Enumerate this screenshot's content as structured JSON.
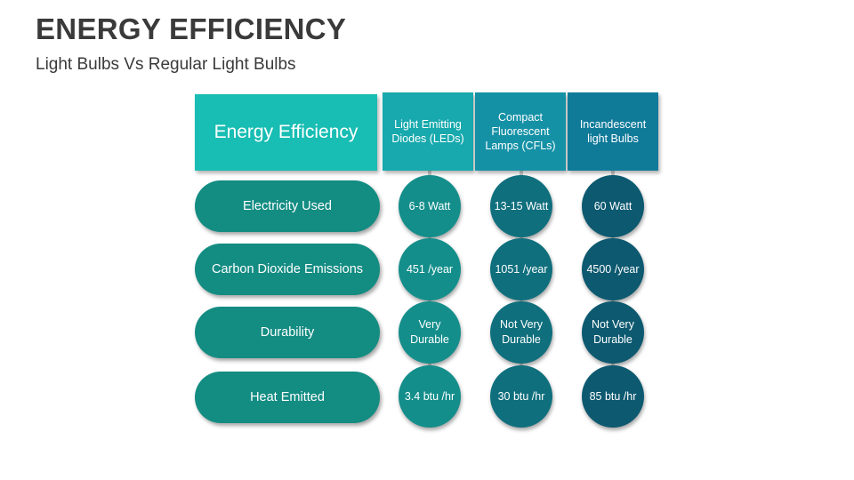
{
  "title": "ENERGY EFFICIENCY",
  "subtitle": "Light Bulbs Vs Regular Light Bulbs",
  "table": {
    "header_label": "Energy Efficiency",
    "columns": [
      {
        "label": "Light Emitting Diodes (LEDs)",
        "color": "#17a9ad"
      },
      {
        "label": "Compact Fluorescent Lamps (CFLs)",
        "color": "#1591a6"
      },
      {
        "label": "Incandescent light Bulbs",
        "color": "#107a99"
      }
    ],
    "rows": [
      {
        "label": "Electricity Used",
        "values": [
          "6-8 Watt",
          "13-15 Watt",
          "60 Watt"
        ]
      },
      {
        "label": "Carbon Dioxide Emissions",
        "values": [
          "451 /year",
          "1051 /year",
          "4500 /year"
        ]
      },
      {
        "label": "Durability",
        "values": [
          "Very Durable",
          "Not Very Durable",
          "Not Very Durable"
        ]
      },
      {
        "label": "Heat Emitted",
        "values": [
          "3.4 btu /hr",
          "30 btu /hr",
          "85 btu /hr"
        ]
      }
    ],
    "cell_colors": [
      "#138e8b",
      "#0f6f7d",
      "#0c5970"
    ]
  }
}
